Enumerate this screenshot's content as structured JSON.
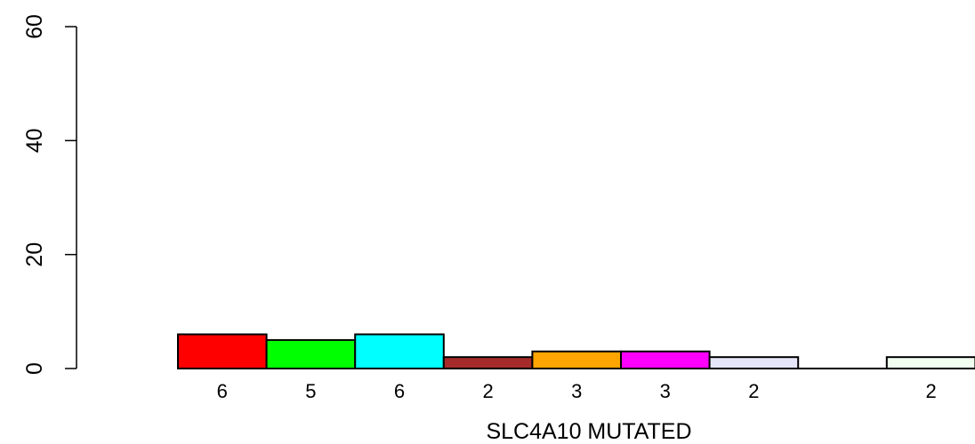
{
  "chart_data": {
    "type": "bar",
    "title": "",
    "xlabel": "SLC4A10 MUTATED",
    "ylabel": "",
    "ylim": [
      0,
      60
    ],
    "yticks": [
      0,
      20,
      40,
      60
    ],
    "grid": false,
    "legend": "none",
    "categories": [
      "",
      "",
      "",
      "",
      "",
      "",
      "",
      "",
      ""
    ],
    "values": [
      6,
      5,
      6,
      2,
      3,
      3,
      2,
      0,
      2
    ],
    "labels": [
      "6",
      "5",
      "6",
      "2",
      "3",
      "3",
      "2",
      "",
      "2"
    ],
    "colors": [
      "#ff0000",
      "#00ff00",
      "#00ffff",
      "#a52a2a",
      "#ffa500",
      "#ff00ff",
      "#e6e6fa",
      "#ffffff",
      "#f0fff0"
    ]
  }
}
